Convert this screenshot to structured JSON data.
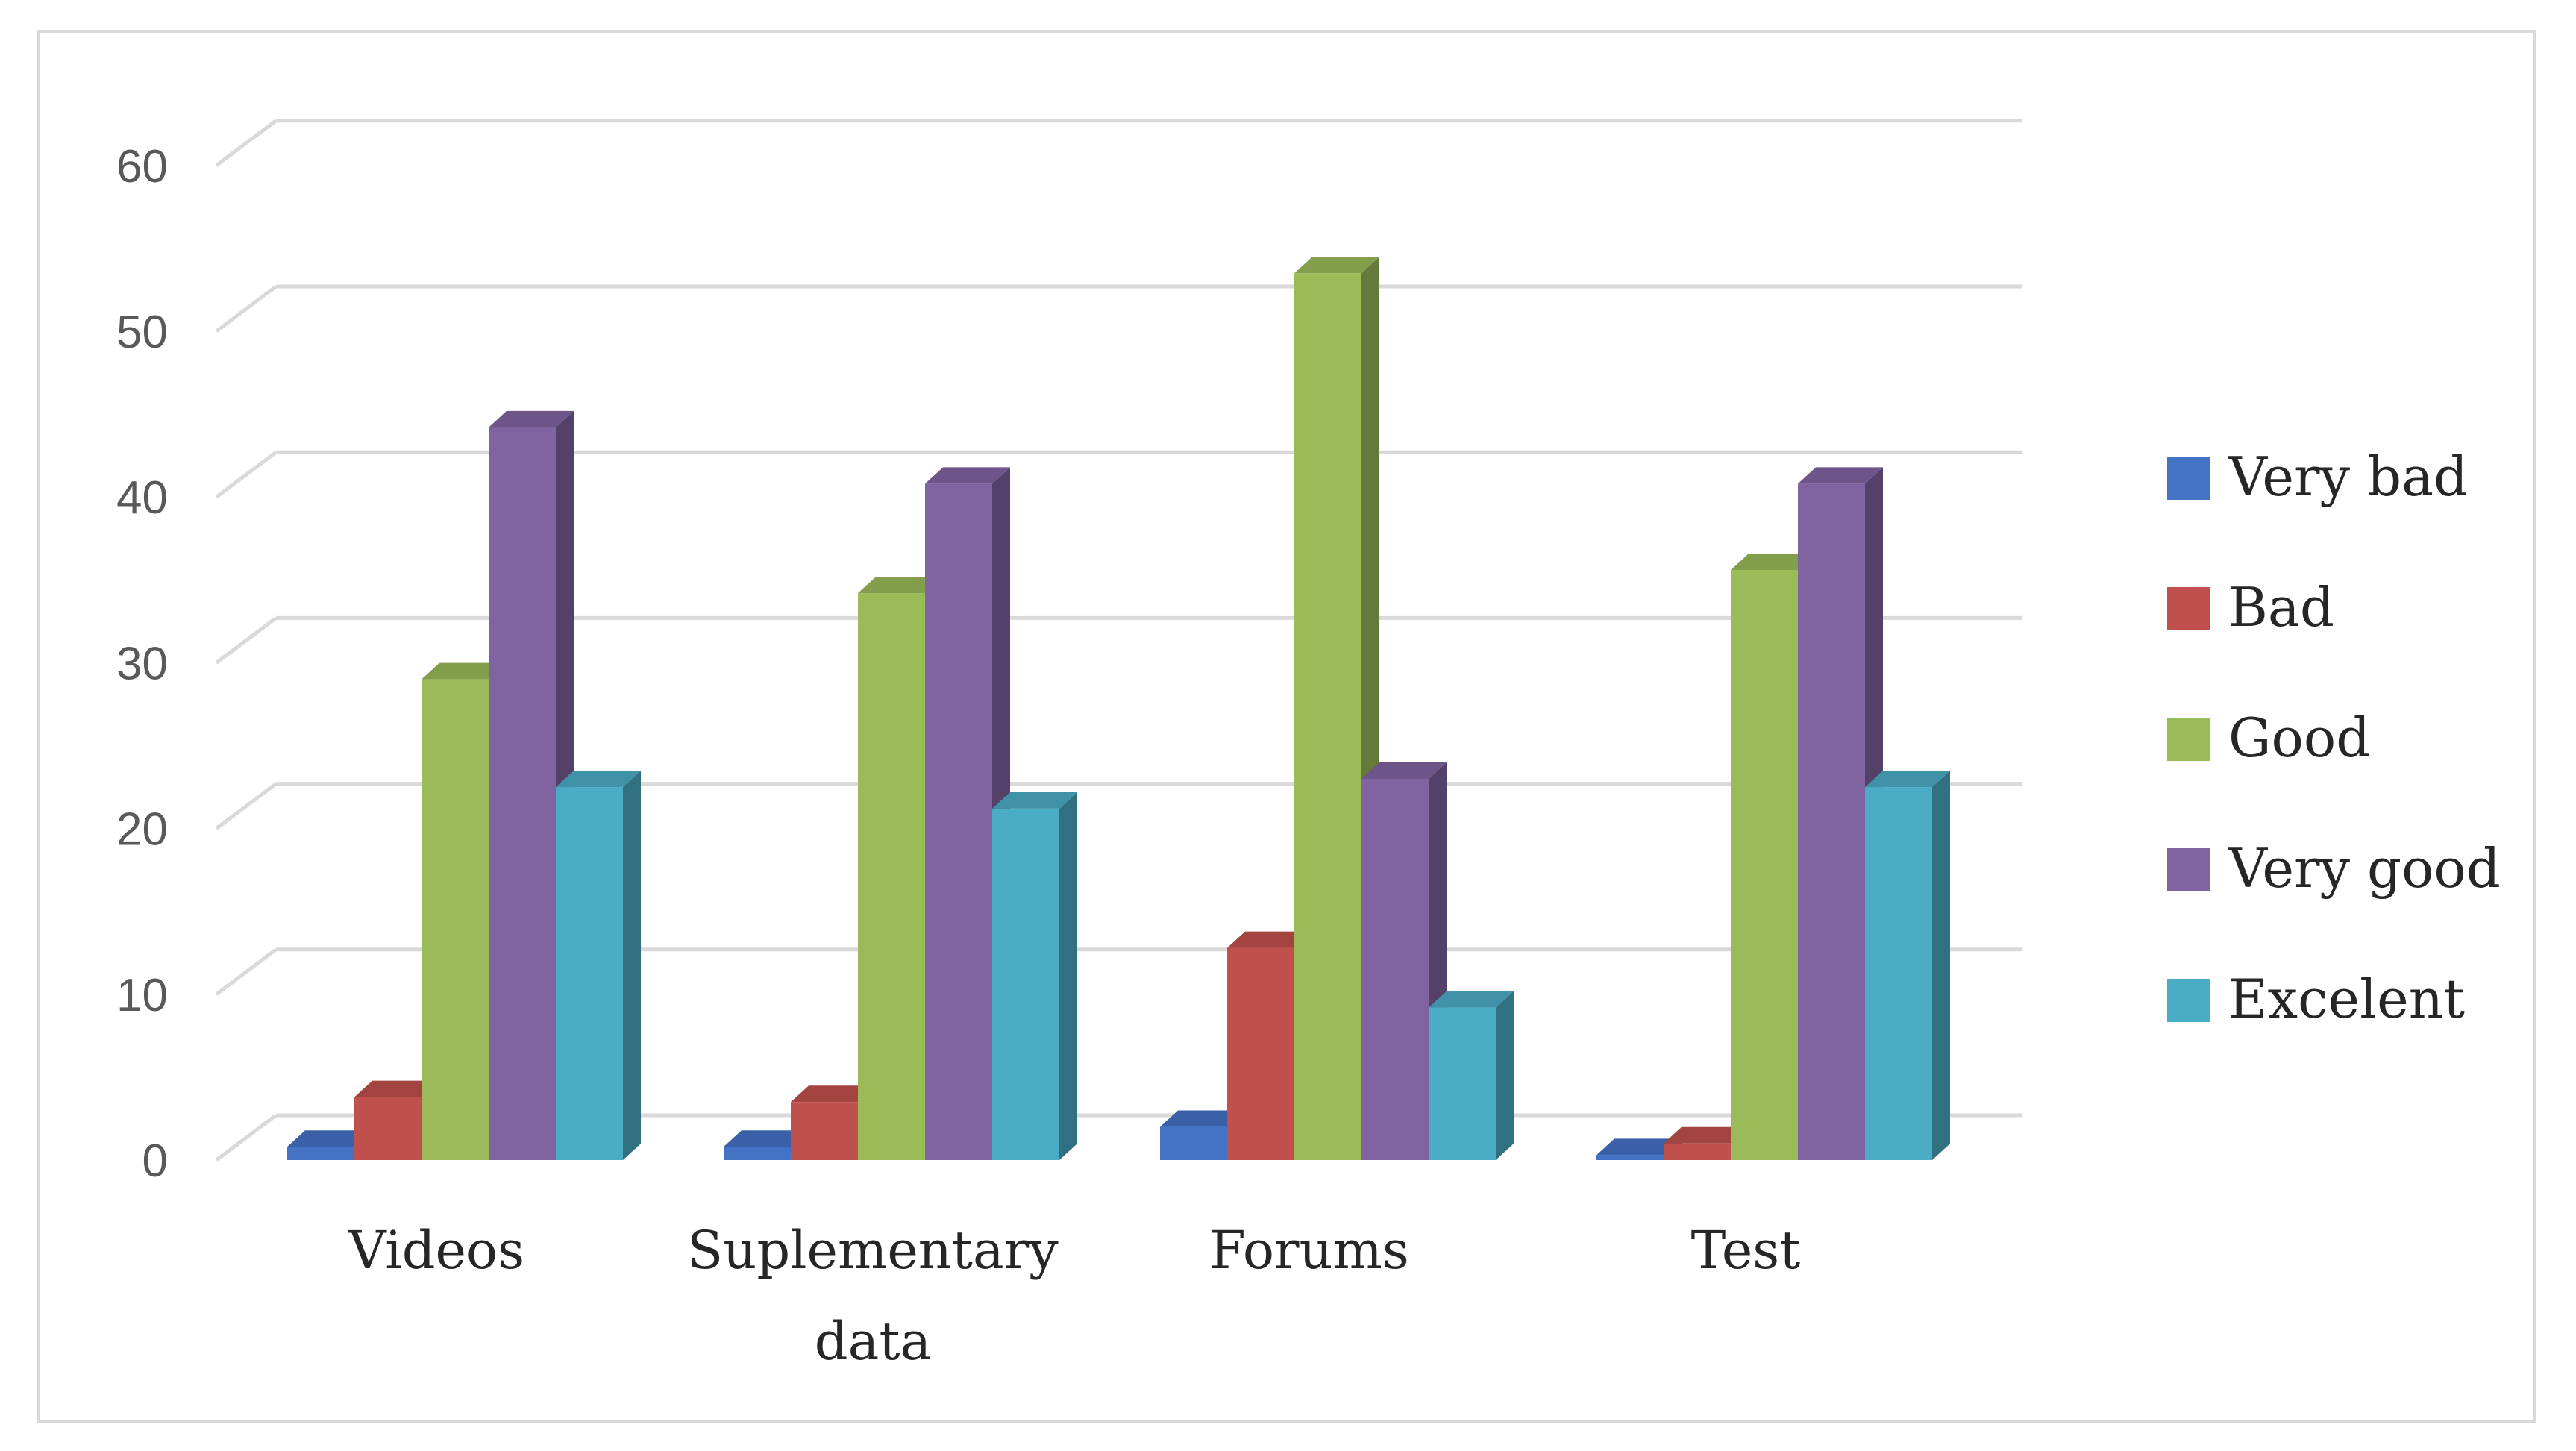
{
  "chart_data": {
    "type": "bar",
    "title": "",
    "xlabel": "",
    "ylabel": "",
    "ylim": [
      0,
      60
    ],
    "yticks": [
      "0",
      "10",
      "20",
      "30",
      "40",
      "50",
      "60"
    ],
    "categories": [
      [
        "Videos"
      ],
      [
        "Suplementary",
        "data"
      ],
      [
        "Forums"
      ],
      [
        "Test"
      ]
    ],
    "series": [
      {
        "name": "Very bad",
        "values": [
          0.8,
          0.8,
          2.0,
          0.3
        ],
        "color": "#4472c4"
      },
      {
        "name": "Bad",
        "values": [
          3.8,
          3.5,
          12.8,
          1.0
        ],
        "color": "#c0504d"
      },
      {
        "name": "Good",
        "values": [
          29.0,
          34.2,
          53.5,
          35.6
        ],
        "color": "#9bbb59"
      },
      {
        "name": "Very good",
        "values": [
          44.2,
          40.8,
          23.0,
          40.8
        ],
        "color": "#8064a2"
      },
      {
        "name": "Excelent",
        "values": [
          22.5,
          21.2,
          9.2,
          22.5
        ],
        "color": "#4bacc6"
      }
    ],
    "grid": true,
    "legend_position": "right",
    "style": "3d-clustered-column"
  }
}
